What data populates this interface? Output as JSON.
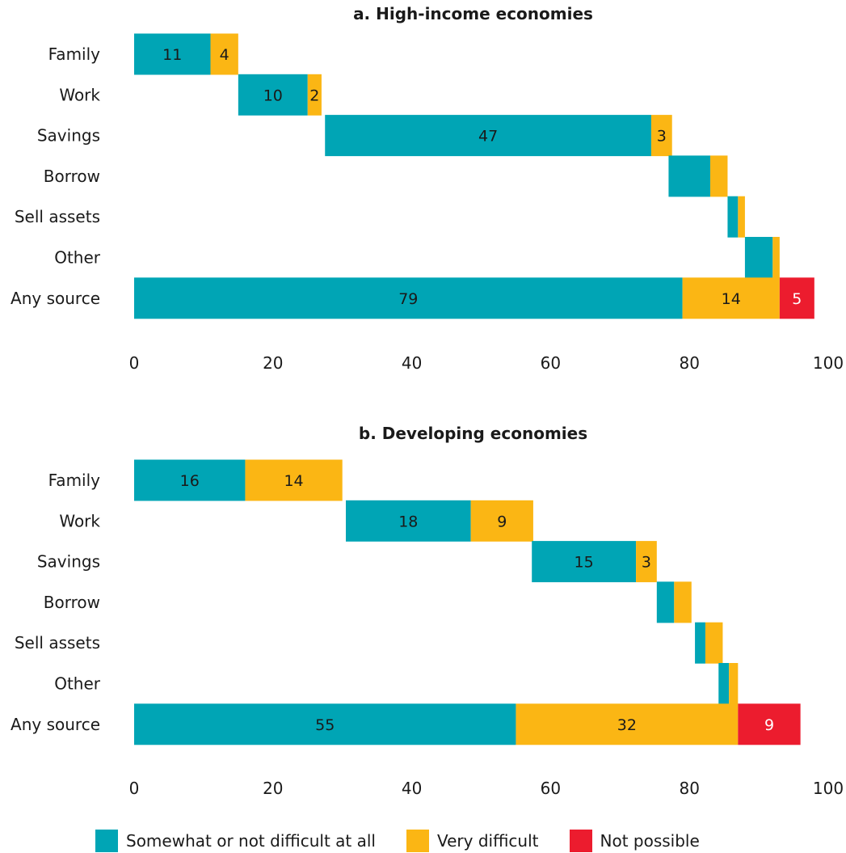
{
  "colors": {
    "somewhat": "#00A5B5",
    "very": "#FBB614",
    "not_possible": "#EC1C2E"
  },
  "legend": [
    {
      "key": "somewhat",
      "label": "Somewhat or not difficult at all"
    },
    {
      "key": "very",
      "label": "Very difficult"
    },
    {
      "key": "not_possible",
      "label": "Not possible"
    }
  ],
  "chart_data": [
    {
      "type": "bar",
      "orientation": "horizontal",
      "layout": "waterfall-stacked",
      "title": "a. High-income economies",
      "categories": [
        "Family",
        "Work",
        "Savings",
        "Borrow",
        "Sell assets",
        "Other",
        "Any source"
      ],
      "xlim": [
        0,
        100
      ],
      "xticks": [
        0,
        20,
        40,
        60,
        80,
        100
      ],
      "grid": false,
      "series": [
        {
          "name": "Somewhat or not difficult at all",
          "key": "somewhat",
          "values": [
            11,
            10,
            47,
            6,
            1.5,
            4,
            79
          ]
        },
        {
          "name": "Very difficult",
          "key": "very",
          "values": [
            4,
            2,
            3,
            2.5,
            1,
            1,
            14
          ]
        },
        {
          "name": "Not possible",
          "key": "not_possible",
          "values": [
            0,
            0,
            0,
            0,
            0,
            0,
            5
          ]
        }
      ],
      "start": [
        0,
        15,
        27.5,
        77,
        85.5,
        88,
        0
      ],
      "data_labels": [
        [
          "11",
          "10",
          "47",
          "",
          "",
          "",
          "79"
        ],
        [
          "4",
          "2",
          "3",
          "",
          "",
          "",
          "14"
        ],
        [
          "",
          "",
          "",
          "",
          "",
          "",
          "5"
        ]
      ]
    },
    {
      "type": "bar",
      "orientation": "horizontal",
      "layout": "waterfall-stacked",
      "title": "b. Developing economies",
      "categories": [
        "Family",
        "Work",
        "Savings",
        "Borrow",
        "Sell assets",
        "Other",
        "Any source"
      ],
      "xlim": [
        0,
        100
      ],
      "xticks": [
        0,
        20,
        40,
        60,
        80,
        100
      ],
      "grid": false,
      "series": [
        {
          "name": "Somewhat or not difficult at all",
          "key": "somewhat",
          "values": [
            16,
            18,
            15,
            2.5,
            1.5,
            1.5,
            55
          ]
        },
        {
          "name": "Very difficult",
          "key": "very",
          "values": [
            14,
            9,
            3,
            2.5,
            2.5,
            1.3,
            32
          ]
        },
        {
          "name": "Not possible",
          "key": "not_possible",
          "values": [
            0,
            0,
            0,
            0,
            0,
            0,
            9
          ]
        }
      ],
      "start": [
        0,
        30.5,
        57.3,
        75.3,
        80.8,
        84.2,
        0
      ],
      "data_labels": [
        [
          "16",
          "18",
          "15",
          "",
          "",
          "",
          "55"
        ],
        [
          "14",
          "9",
          "3",
          "",
          "",
          "",
          "32"
        ],
        [
          "",
          "",
          "",
          "",
          "",
          "",
          "9"
        ]
      ]
    }
  ]
}
